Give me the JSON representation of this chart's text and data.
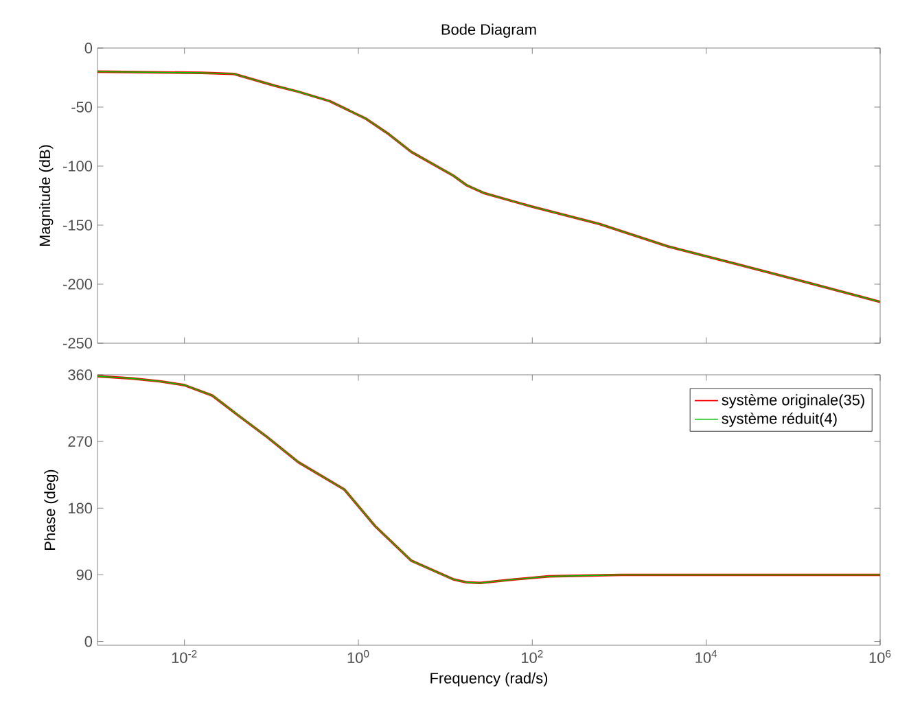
{
  "chart_data": [
    {
      "type": "line",
      "title": "Bode Diagram",
      "ylabel": "Magnitude (dB)",
      "log": "x",
      "xlim": [
        0.001,
        1000000
      ],
      "ylim": [
        -250,
        0
      ],
      "line_style": "solid",
      "xticks": [
        {
          "value": 0.01,
          "label": null
        },
        {
          "value": 1,
          "label": null
        },
        {
          "value": 100,
          "label": null
        },
        {
          "value": 10000,
          "label": null
        },
        {
          "value": 1000000,
          "label": null
        }
      ],
      "yticks": [
        -250,
        -200,
        -150,
        -100,
        -50,
        0
      ],
      "tick_labels": "y",
      "x": [
        0.001,
        0.0158,
        0.0372,
        0.11,
        0.204,
        0.468,
        1.23,
        2.24,
        4.07,
        12.3,
        17.4,
        28.2,
        95.5,
        589,
        3630,
        22400,
        135000,
        1000000
      ],
      "series": [
        {
          "color": "#ff0000",
          "values": [
            -20,
            -21,
            -22,
            -32,
            -37,
            -45,
            -60,
            -73,
            -88,
            -108,
            -116,
            -123,
            -134,
            -149,
            -168,
            -183,
            -198,
            -215
          ]
        },
        {
          "color": "#00c000",
          "values": [
            -20,
            -21,
            -22,
            -32,
            -37,
            -45,
            -60,
            -73,
            -88,
            -108,
            -116,
            -123,
            -134,
            -149,
            -168,
            -183,
            -198,
            -215
          ]
        }
      ]
    },
    {
      "type": "line",
      "xlabel": "Frequency  (rad/s)",
      "ylabel": "Phase (deg)",
      "log": "x",
      "xlim": [
        0.001,
        1000000
      ],
      "ylim": [
        -5,
        360
      ],
      "line_style": "solid",
      "legend": "top right",
      "xticks": [
        {
          "value": 0.01,
          "label": "10$^{-2}$"
        },
        {
          "value": 1,
          "label": "10$^{0}$"
        },
        {
          "value": 100,
          "label": "10$^{2}$"
        },
        {
          "value": 10000,
          "label": "10$^{4}$"
        },
        {
          "value": 1000000,
          "label": "10$^{6}$"
        }
      ],
      "yticks": [
        0,
        90,
        180,
        270,
        360
      ],
      "x": [
        0.001,
        0.00251,
        0.00537,
        0.01,
        0.0209,
        0.0427,
        0.0891,
        0.204,
        0.692,
        1.55,
        4.07,
        12.3,
        17.4,
        25.1,
        52.5,
        155,
        1050,
        1000000
      ],
      "series": [
        {
          "name": "système originale(35)",
          "color": "#ff0000",
          "values": [
            358,
            355,
            351,
            346,
            332,
            304,
            276,
            242,
            205,
            156,
            109,
            84,
            80,
            79,
            83,
            88,
            90,
            90
          ]
        },
        {
          "name": "système réduit(4)",
          "color": "#00c000",
          "values": [
            358,
            355,
            351,
            346,
            332,
            304,
            276,
            242,
            205,
            156,
            109,
            84,
            80,
            79,
            83,
            88,
            90,
            90
          ]
        }
      ]
    }
  ]
}
